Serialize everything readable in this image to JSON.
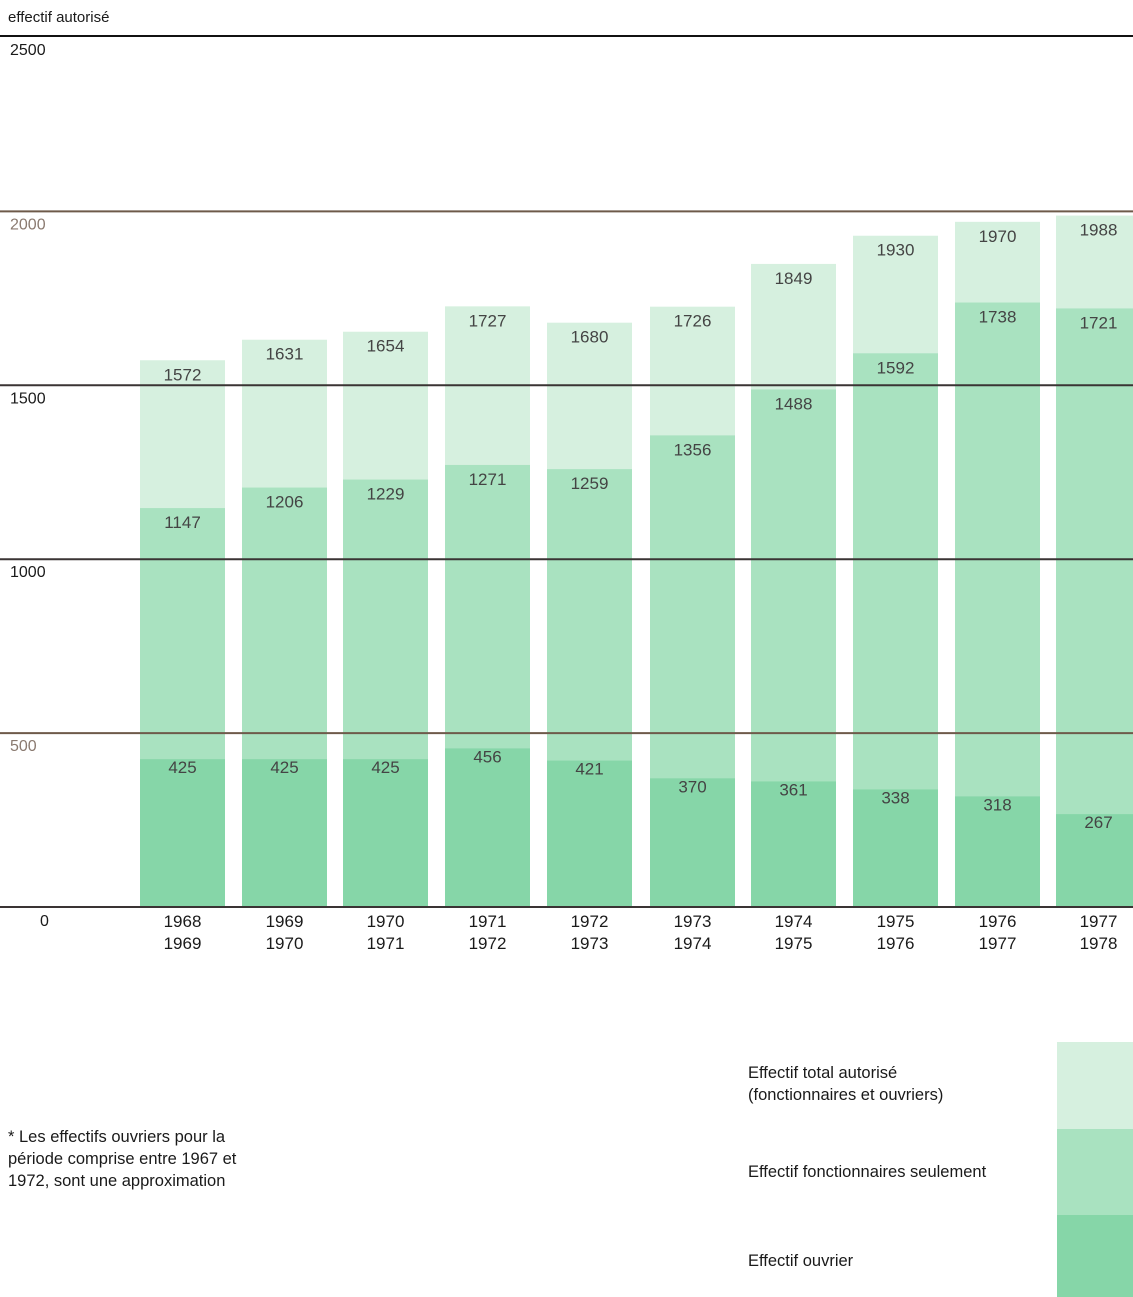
{
  "chart_data": {
    "type": "bar",
    "ylabel": "effectif autorisé",
    "ylim": [
      0,
      2500
    ],
    "yticks": [
      "0",
      "500",
      "1000",
      "1500",
      "2000",
      "2500"
    ],
    "grid": true,
    "categories": [
      [
        "1968",
        "1969"
      ],
      [
        "1969",
        "1970"
      ],
      [
        "1970",
        "1971"
      ],
      [
        "1971",
        "1972"
      ],
      [
        "1972",
        "1973"
      ],
      [
        "1973",
        "1974"
      ],
      [
        "1974",
        "1975"
      ],
      [
        "1975",
        "1976"
      ],
      [
        "1976",
        "1977"
      ],
      [
        "1977",
        "1978"
      ]
    ],
    "series": [
      {
        "name": "Effectif total autorisé (fonctionnaires et ouvriers)",
        "values": [
          1572,
          1631,
          1654,
          1727,
          1680,
          1726,
          1849,
          1930,
          1970,
          1988
        ]
      },
      {
        "name": "Effectif fonctionnaires seulement",
        "values": [
          1147,
          1206,
          1229,
          1271,
          1259,
          1356,
          1488,
          1592,
          1738,
          1721
        ]
      },
      {
        "name": "Effectif ouvrier",
        "values": [
          425,
          425,
          425,
          456,
          421,
          370,
          361,
          338,
          318,
          267
        ]
      }
    ],
    "colors": {
      "total": "#d6f0df",
      "fonctionnaires": "#a9e2c0",
      "ouvrier": "#86d6a8"
    },
    "legend": {
      "position": "bottom-right",
      "items": [
        {
          "label": "Effectif total autorisé\n(fonctionnaires et ouvriers)"
        },
        {
          "label": "Effectif fonctionnaires seulement"
        },
        {
          "label": "Effectif ouvrier"
        }
      ]
    },
    "footnote": "* Les effectifs ouvriers pour la période comprise entre 1967 et 1972, sont une approximation"
  }
}
